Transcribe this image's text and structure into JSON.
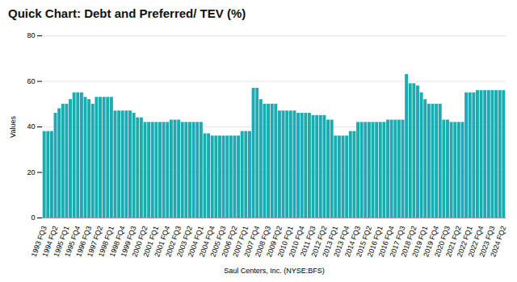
{
  "chart_data": {
    "type": "bar",
    "title": "Quick Chart: Debt and Preferred/ TEV (%)",
    "xlabel": "Saul Centers, Inc. (NYSE:BFS)",
    "ylabel": "Values",
    "color": "#1aacb0",
    "grid": true,
    "ylim": [
      0,
      80
    ],
    "yticks": [
      0,
      20,
      40,
      60,
      80
    ],
    "categories": [
      "1993 FQ3",
      null,
      null,
      "1994 FQ2",
      null,
      null,
      "1995 FQ1",
      null,
      null,
      "1995 FQ4",
      null,
      null,
      "1996 FQ3",
      null,
      null,
      "1997 FQ2",
      null,
      null,
      "1998 FQ1",
      null,
      null,
      "1998 FQ4",
      null,
      null,
      "1999 FQ3",
      null,
      null,
      "2000 FQ2",
      null,
      null,
      "2001 FQ1",
      null,
      null,
      "2001 FQ4",
      null,
      null,
      "2002 FQ3",
      null,
      null,
      "2003 FQ2",
      null,
      null,
      "2004 FQ1",
      null,
      null,
      "2004 FQ4",
      null,
      null,
      "2005 FQ3",
      null,
      null,
      "2006 FQ2",
      null,
      null,
      "2007 FQ1",
      null,
      null,
      "2007 FQ4",
      null,
      null,
      "2008 FQ3",
      null,
      null,
      "2009 FQ2",
      null,
      null,
      "2010 FQ1",
      null,
      null,
      "2010 FQ4",
      null,
      null,
      "2011 FQ3",
      null,
      null,
      "2012 FQ2",
      null,
      null,
      "2013 FQ1",
      null,
      null,
      "2013 FQ4",
      null,
      null,
      "2014 FQ3",
      null,
      null,
      "2015 FQ2",
      null,
      null,
      "2016 FQ1",
      null,
      null,
      "2016 FQ4",
      null,
      null,
      "2017 FQ3",
      null,
      null,
      "2018 FQ2",
      null,
      null,
      "2019 FQ1",
      null,
      null,
      "2019 FQ4",
      null,
      null,
      "2020 FQ3",
      null,
      null,
      "2021 FQ2",
      null,
      null,
      "2022 FQ1",
      null,
      null,
      "2022 FQ4",
      null,
      null,
      "2023 FQ3",
      null,
      null,
      "2024 FQ2"
    ],
    "values": [
      38,
      38,
      38,
      46,
      48,
      50,
      50,
      52,
      55,
      55,
      55,
      53,
      52,
      50,
      53,
      53,
      53,
      53,
      53,
      47,
      47,
      47,
      47,
      47,
      46,
      44,
      44,
      42,
      42,
      42,
      42,
      42,
      42,
      42,
      43,
      43,
      43,
      42,
      42,
      42,
      42,
      42,
      42,
      37,
      37,
      36,
      36,
      36,
      36,
      36,
      36,
      36,
      36,
      38,
      38,
      38,
      57,
      57,
      52,
      50,
      50,
      50,
      50,
      47,
      47,
      47,
      47,
      47,
      46,
      46,
      46,
      46,
      45,
      45,
      45,
      45,
      43,
      43,
      36,
      36,
      36,
      36,
      38,
      38,
      42,
      42,
      42,
      42,
      42,
      42,
      42,
      42,
      43,
      43,
      43,
      43,
      43,
      63,
      59,
      59,
      58,
      55,
      52,
      50,
      50,
      50,
      50,
      43,
      43,
      42,
      42,
      42,
      42,
      55,
      55,
      55,
      56,
      56,
      56,
      56,
      56,
      56,
      56,
      56
    ]
  }
}
